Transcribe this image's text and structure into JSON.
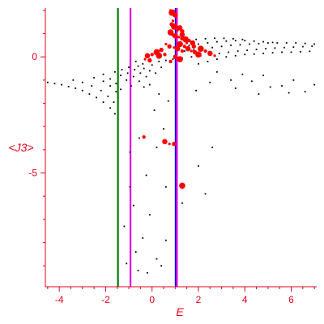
{
  "chart_data": {
    "type": "scatter",
    "title": "",
    "xlabel": "E",
    "ylabel": "<J3>",
    "xlim": [
      -4.6,
      7.1
    ],
    "ylim": [
      -9.9,
      2.1
    ],
    "x_ticks": [
      -4,
      -2,
      0,
      2,
      4,
      6
    ],
    "y_ticks": [
      0,
      -5
    ],
    "x_tick_labels": [
      "-4",
      "-2",
      "0",
      "2",
      "4",
      "6"
    ],
    "y_tick_labels": [
      "0",
      "-5"
    ],
    "grid": false,
    "colors": {
      "axis": "#e8001c",
      "points_black": "#000000",
      "points_red": "#ff0000",
      "line_green": "#007a00",
      "line_magenta": "#e000e0",
      "line_blue": "#0000ff"
    },
    "vertical_lines": [
      {
        "x": -1.47,
        "color": "#007a00"
      },
      {
        "x": -0.93,
        "color": "#e000e0"
      },
      {
        "x": 1.02,
        "color": "#0000ff"
      },
      {
        "x": 1.07,
        "color": "#e000e0"
      }
    ],
    "series": [
      {
        "color": "#000000",
        "points": [
          [
            -4.5,
            -1.1
          ],
          [
            -4.2,
            -1.15
          ],
          [
            -3.9,
            -1.2
          ],
          [
            -3.6,
            -1.28
          ],
          [
            -3.3,
            -1.35
          ],
          [
            -3.0,
            -1.45
          ],
          [
            -2.7,
            -1.6
          ],
          [
            -2.4,
            -1.75
          ],
          [
            -2.1,
            -1.95
          ],
          [
            -1.8,
            -2.2
          ],
          [
            -1.6,
            -2.45
          ],
          [
            -3.4,
            -1.0
          ],
          [
            -3.0,
            -1.1
          ],
          [
            -2.6,
            -1.25
          ],
          [
            -2.2,
            -1.45
          ],
          [
            -1.9,
            -1.7
          ],
          [
            -1.65,
            -1.95
          ],
          [
            -2.5,
            -0.9
          ],
          [
            -2.1,
            -1.05
          ],
          [
            -1.8,
            -1.25
          ],
          [
            -1.55,
            -1.5
          ],
          [
            -2.1,
            -0.75
          ],
          [
            -1.8,
            -0.95
          ],
          [
            -1.55,
            -1.15
          ],
          [
            -1.35,
            -1.4
          ],
          [
            -1.6,
            -0.65
          ],
          [
            -1.35,
            -0.8
          ],
          [
            -1.1,
            -1.0
          ],
          [
            -0.9,
            -1.25
          ],
          [
            -1.3,
            -0.55
          ],
          [
            -1.05,
            -0.7
          ],
          [
            -0.8,
            -0.85
          ],
          [
            -0.55,
            -1.05
          ],
          [
            -0.35,
            -1.3
          ],
          [
            -1.0,
            -0.45
          ],
          [
            -0.75,
            -0.55
          ],
          [
            -0.5,
            -0.7
          ],
          [
            -0.25,
            -0.85
          ],
          [
            -0.6,
            -0.4
          ],
          [
            -0.35,
            -0.5
          ],
          [
            -0.1,
            -0.6
          ],
          [
            0.15,
            -0.7
          ],
          [
            0.3,
            -0.2
          ],
          [
            0.6,
            -0.15
          ],
          [
            0.9,
            -0.1
          ],
          [
            1.3,
            -0.05
          ],
          [
            1.7,
            0.0
          ],
          [
            2.1,
            0.05
          ],
          [
            2.5,
            0.1
          ],
          [
            2.9,
            0.15
          ],
          [
            3.3,
            0.2
          ],
          [
            3.7,
            0.25
          ],
          [
            4.1,
            0.28
          ],
          [
            4.5,
            0.32
          ],
          [
            4.9,
            0.35
          ],
          [
            5.3,
            0.38
          ],
          [
            5.7,
            0.4
          ],
          [
            6.1,
            0.42
          ],
          [
            6.5,
            0.44
          ],
          [
            6.9,
            0.46
          ],
          [
            1.4,
            0.25
          ],
          [
            1.8,
            0.3
          ],
          [
            2.2,
            0.35
          ],
          [
            2.6,
            0.4
          ],
          [
            3.0,
            0.45
          ],
          [
            3.4,
            0.5
          ],
          [
            3.8,
            0.52
          ],
          [
            4.2,
            0.55
          ],
          [
            4.6,
            0.57
          ],
          [
            5.0,
            0.6
          ],
          [
            5.4,
            0.6
          ],
          [
            5.8,
            0.6
          ],
          [
            6.2,
            0.6
          ],
          [
            6.6,
            0.58
          ],
          [
            7.0,
            0.55
          ],
          [
            1.6,
            0.5
          ],
          [
            2.0,
            0.55
          ],
          [
            2.4,
            0.6
          ],
          [
            2.8,
            0.65
          ],
          [
            3.2,
            0.68
          ],
          [
            3.6,
            0.7
          ],
          [
            4.0,
            0.7
          ],
          [
            4.4,
            0.68
          ],
          [
            4.8,
            0.65
          ],
          [
            5.2,
            0.62
          ],
          [
            1.5,
            0.72
          ],
          [
            1.9,
            0.75
          ],
          [
            2.3,
            0.78
          ],
          [
            2.7,
            0.8
          ],
          [
            3.1,
            0.8
          ],
          [
            3.5,
            0.78
          ],
          [
            3.9,
            0.75
          ],
          [
            2.0,
            -0.3
          ],
          [
            2.4,
            -0.2
          ],
          [
            2.8,
            -0.1
          ],
          [
            3.2,
            0.0
          ],
          [
            3.6,
            0.05
          ],
          [
            4.0,
            0.1
          ],
          [
            4.4,
            0.12
          ],
          [
            4.8,
            0.15
          ],
          [
            5.2,
            0.18
          ],
          [
            5.6,
            0.2
          ],
          [
            6.0,
            0.2
          ],
          [
            6.4,
            0.22
          ],
          [
            6.8,
            0.24
          ],
          [
            2.8,
            -0.65
          ],
          [
            3.4,
            -1.0
          ],
          [
            3.9,
            -0.75
          ],
          [
            4.3,
            -1.05
          ],
          [
            4.8,
            -0.8
          ],
          [
            5.1,
            -1.3
          ],
          [
            5.6,
            -1.25
          ],
          [
            6.1,
            -1.0
          ],
          [
            6.6,
            -1.5
          ],
          [
            7.0,
            -1.2
          ],
          [
            5.9,
            -1.55
          ],
          [
            4.6,
            -1.6
          ],
          [
            3.6,
            -1.35
          ],
          [
            2.5,
            -1.1
          ],
          [
            1.9,
            -1.45
          ],
          [
            -0.1,
            -1.2
          ],
          [
            0.3,
            -1.6
          ],
          [
            0.7,
            -1.9
          ],
          [
            0.1,
            -2.3
          ],
          [
            0.5,
            -3.1
          ],
          [
            0.2,
            -3.9
          ],
          [
            -0.55,
            -3.5
          ],
          [
            -0.95,
            -4.1
          ],
          [
            -0.25,
            -5.1
          ],
          [
            0.6,
            -5.6
          ],
          [
            1.3,
            -6.3
          ],
          [
            2.0,
            -4.7
          ],
          [
            2.6,
            -3.9
          ],
          [
            2.3,
            -5.9
          ],
          [
            -1.2,
            -7.3
          ],
          [
            -0.8,
            -6.4
          ],
          [
            -0.7,
            -8.4
          ],
          [
            -0.4,
            -7.8
          ],
          [
            -0.95,
            -5.6
          ],
          [
            -0.6,
            -9.2
          ],
          [
            -1.1,
            -8.9
          ],
          [
            -0.2,
            -9.3
          ],
          [
            0.2,
            -8.7
          ],
          [
            0.4,
            -9.0
          ],
          [
            0.6,
            -7.9
          ],
          [
            -0.1,
            -6.8
          ],
          [
            -0.7,
            -0.2
          ],
          [
            -0.4,
            -0.3
          ],
          [
            0.0,
            -0.35
          ],
          [
            0.4,
            -0.45
          ],
          [
            -0.3,
            -0.1
          ]
        ]
      },
      {
        "color": "#ff0000",
        "points": [
          [
            0.8,
            2.0
          ],
          [
            0.9,
            1.95
          ],
          [
            0.85,
            1.9
          ],
          [
            0.95,
            1.85
          ],
          [
            1.0,
            1.8
          ],
          [
            0.9,
            1.55
          ],
          [
            0.85,
            1.4
          ],
          [
            0.95,
            1.3
          ],
          [
            1.05,
            1.3
          ],
          [
            1.2,
            1.25
          ],
          [
            1.1,
            1.15
          ],
          [
            1.3,
            1.1
          ],
          [
            0.8,
            1.05
          ],
          [
            0.9,
            0.95
          ],
          [
            1.0,
            0.9
          ],
          [
            1.15,
            0.85
          ],
          [
            1.3,
            0.8
          ],
          [
            1.45,
            0.75
          ],
          [
            1.6,
            0.7
          ],
          [
            1.75,
            0.6
          ],
          [
            0.6,
            0.55
          ],
          [
            0.75,
            0.45
          ],
          [
            1.2,
            0.55
          ],
          [
            1.4,
            0.45
          ],
          [
            1.55,
            0.35
          ],
          [
            1.7,
            0.25
          ],
          [
            1.85,
            0.2
          ],
          [
            2.0,
            0.1
          ],
          [
            1.3,
            0.25
          ],
          [
            1.1,
            0.35
          ],
          [
            0.95,
            0.4
          ],
          [
            0.4,
            0.3
          ],
          [
            0.2,
            0.2
          ],
          [
            0.0,
            0.1
          ],
          [
            -0.2,
            0.05
          ],
          [
            -0.3,
            -0.1
          ],
          [
            -0.1,
            -0.15
          ],
          [
            0.3,
            0.05
          ],
          [
            0.55,
            0.1
          ],
          [
            1.3,
            0.95
          ],
          [
            1.5,
            0.6
          ],
          [
            1.8,
            0.45
          ],
          [
            2.1,
            0.35
          ],
          [
            2.3,
            0.25
          ],
          [
            2.5,
            0.15
          ],
          [
            2.7,
            0.05
          ],
          [
            1.0,
            0.0
          ],
          [
            1.2,
            -0.1
          ],
          [
            0.8,
            -0.2
          ],
          [
            0.55,
            -3.65
          ],
          [
            0.75,
            -3.75
          ],
          [
            0.95,
            -3.75
          ],
          [
            1.3,
            -5.55
          ],
          [
            -0.35,
            -3.45
          ]
        ]
      }
    ]
  }
}
